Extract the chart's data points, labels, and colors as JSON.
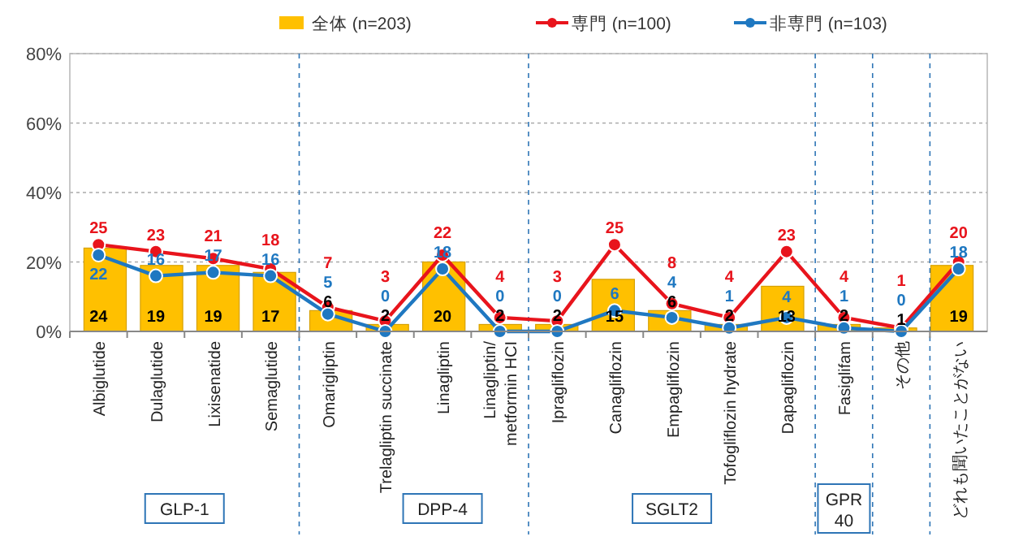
{
  "chart_data": {
    "type": "bar",
    "categories": [
      "Albiglutide",
      "Dulaglutide",
      "Lixisenatide",
      "Semaglutide",
      "Omarigliptin",
      "Trelagliptin succinate",
      "Linagliptin",
      "Linagliptin/metformin HCI",
      "Ipragliflozin",
      "Canagliflozin",
      "Empagliflozin",
      "Tofogliflozin hydrate",
      "Dapagliflozin",
      "Fasiglifam",
      "その他",
      "どれも聞いたことがない"
    ],
    "series": [
      {
        "name": "全体 (n=203)",
        "color": "#ffc000",
        "values": [
          24,
          19,
          19,
          17,
          6,
          2,
          20,
          2,
          2,
          15,
          6,
          2,
          13,
          2,
          1,
          19
        ]
      },
      {
        "name": "専門 (n=100)",
        "type": "line",
        "color": "#e8141c",
        "values": [
          25,
          23,
          21,
          18,
          7,
          3,
          22,
          4,
          3,
          25,
          8,
          4,
          23,
          4,
          1,
          20
        ]
      },
      {
        "name": "非専門 (n=103)",
        "type": "line",
        "color": "#1f78c1",
        "values": [
          22,
          16,
          17,
          16,
          5,
          0,
          18,
          0,
          0,
          6,
          4,
          1,
          4,
          1,
          0,
          18
        ]
      }
    ],
    "annotations": [
      "GLP-1",
      "DPP-4",
      "SGLT2",
      "GPR 40"
    ],
    "ylim": [
      0,
      80
    ],
    "yticks": [
      {
        "value": 0,
        "label": "0%"
      },
      {
        "value": 20,
        "label": "20%"
      },
      {
        "value": 40,
        "label": "40%"
      },
      {
        "value": 60,
        "label": "60%"
      },
      {
        "value": 80,
        "label": "80%"
      }
    ],
    "grid": "y",
    "legend": "top",
    "marker": "circle",
    "line_style": "solid",
    "data_labels": true
  }
}
